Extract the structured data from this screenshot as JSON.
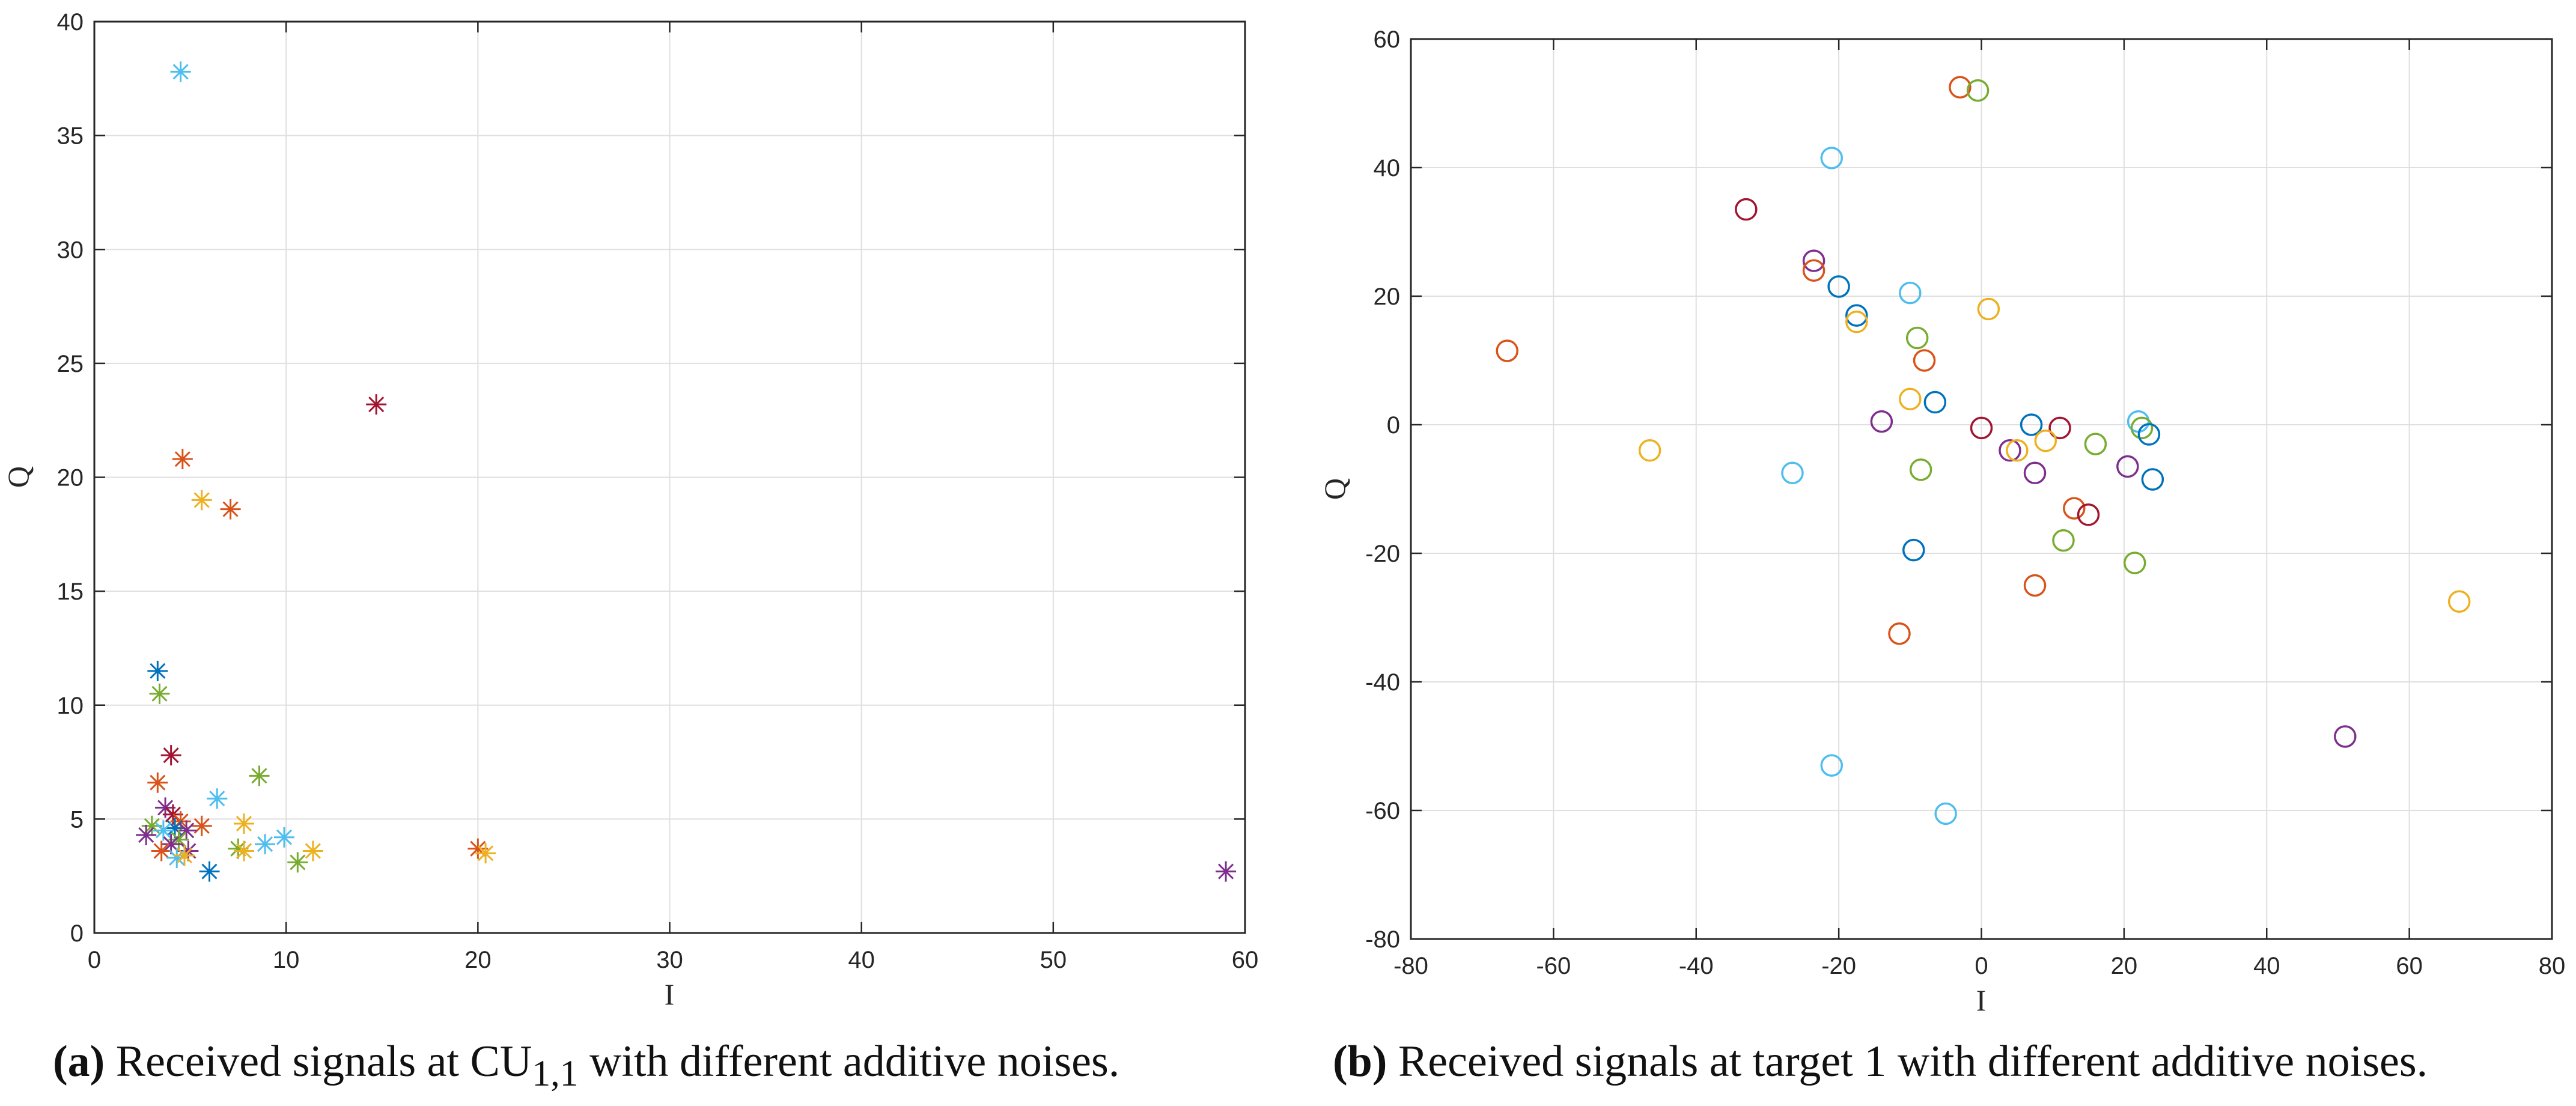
{
  "colors": [
    "#0072BD",
    "#D95319",
    "#EDB120",
    "#7E2F8E",
    "#77AC30",
    "#4DBEEE",
    "#A2142F"
  ],
  "chart_data": [
    {
      "type": "scatter",
      "marker": "asterisk",
      "title": "",
      "xlabel": "I",
      "ylabel": "Q",
      "xlim": [
        0,
        60
      ],
      "ylim": [
        0,
        40
      ],
      "xticks": [
        0,
        10,
        20,
        30,
        40,
        50,
        60
      ],
      "yticks": [
        0,
        5,
        10,
        15,
        20,
        25,
        30,
        35,
        40
      ],
      "grid": true,
      "points": [
        {
          "x": 4.5,
          "y": 37.8,
          "c": 5
        },
        {
          "x": 14.7,
          "y": 23.2,
          "c": 6
        },
        {
          "x": 4.6,
          "y": 20.8,
          "c": 1
        },
        {
          "x": 5.6,
          "y": 19.0,
          "c": 2
        },
        {
          "x": 7.1,
          "y": 18.6,
          "c": 1
        },
        {
          "x": 3.3,
          "y": 11.5,
          "c": 0
        },
        {
          "x": 3.4,
          "y": 10.5,
          "c": 4
        },
        {
          "x": 4.0,
          "y": 7.8,
          "c": 6
        },
        {
          "x": 8.6,
          "y": 6.9,
          "c": 4
        },
        {
          "x": 3.3,
          "y": 6.6,
          "c": 1
        },
        {
          "x": 6.4,
          "y": 5.9,
          "c": 5
        },
        {
          "x": 3.7,
          "y": 5.5,
          "c": 3
        },
        {
          "x": 4.1,
          "y": 5.2,
          "c": 6
        },
        {
          "x": 4.5,
          "y": 4.9,
          "c": 1
        },
        {
          "x": 3.0,
          "y": 4.7,
          "c": 4
        },
        {
          "x": 5.6,
          "y": 4.7,
          "c": 1
        },
        {
          "x": 7.8,
          "y": 4.8,
          "c": 2
        },
        {
          "x": 4.2,
          "y": 4.6,
          "c": 0
        },
        {
          "x": 4.8,
          "y": 4.5,
          "c": 3
        },
        {
          "x": 3.6,
          "y": 4.5,
          "c": 5
        },
        {
          "x": 2.7,
          "y": 4.3,
          "c": 3
        },
        {
          "x": 9.9,
          "y": 4.2,
          "c": 5
        },
        {
          "x": 4.4,
          "y": 4.1,
          "c": 4
        },
        {
          "x": 4.0,
          "y": 3.9,
          "c": 3
        },
        {
          "x": 8.9,
          "y": 3.9,
          "c": 5
        },
        {
          "x": 3.5,
          "y": 3.6,
          "c": 1
        },
        {
          "x": 4.9,
          "y": 3.6,
          "c": 3
        },
        {
          "x": 7.5,
          "y": 3.7,
          "c": 4
        },
        {
          "x": 7.8,
          "y": 3.6,
          "c": 2
        },
        {
          "x": 11.4,
          "y": 3.6,
          "c": 2
        },
        {
          "x": 20.0,
          "y": 3.7,
          "c": 1
        },
        {
          "x": 20.4,
          "y": 3.5,
          "c": 2
        },
        {
          "x": 4.3,
          "y": 3.3,
          "c": 5
        },
        {
          "x": 4.7,
          "y": 3.4,
          "c": 2
        },
        {
          "x": 10.6,
          "y": 3.1,
          "c": 4
        },
        {
          "x": 6.0,
          "y": 2.7,
          "c": 0
        },
        {
          "x": 59.0,
          "y": 2.7,
          "c": 3
        }
      ]
    },
    {
      "type": "scatter",
      "marker": "circle",
      "title": "",
      "xlabel": "I",
      "ylabel": "Q",
      "xlim": [
        -80,
        80
      ],
      "ylim": [
        -80,
        60
      ],
      "xticks": [
        -80,
        -60,
        -40,
        -20,
        0,
        20,
        40,
        60,
        80
      ],
      "yticks": [
        -80,
        -60,
        -40,
        -20,
        0,
        20,
        40,
        60
      ],
      "grid": true,
      "points": [
        {
          "x": -3,
          "y": 52.5,
          "c": 1
        },
        {
          "x": -0.5,
          "y": 52,
          "c": 4
        },
        {
          "x": -21,
          "y": 41.5,
          "c": 5
        },
        {
          "x": -33,
          "y": 33.5,
          "c": 6
        },
        {
          "x": -23.5,
          "y": 25.5,
          "c": 3
        },
        {
          "x": -23.5,
          "y": 24,
          "c": 1
        },
        {
          "x": -20,
          "y": 21.5,
          "c": 0
        },
        {
          "x": -10,
          "y": 20.5,
          "c": 5
        },
        {
          "x": 1,
          "y": 18,
          "c": 2
        },
        {
          "x": -17.5,
          "y": 17,
          "c": 0
        },
        {
          "x": -17.5,
          "y": 16,
          "c": 2
        },
        {
          "x": -9,
          "y": 13.5,
          "c": 4
        },
        {
          "x": -66.5,
          "y": 11.5,
          "c": 1
        },
        {
          "x": -8,
          "y": 10,
          "c": 1
        },
        {
          "x": -10,
          "y": 4,
          "c": 2
        },
        {
          "x": -6.5,
          "y": 3.5,
          "c": 0
        },
        {
          "x": -14,
          "y": 0.5,
          "c": 3
        },
        {
          "x": 0,
          "y": -0.5,
          "c": 6
        },
        {
          "x": 7,
          "y": 0,
          "c": 0
        },
        {
          "x": 11,
          "y": -0.5,
          "c": 6
        },
        {
          "x": 22,
          "y": 0.5,
          "c": 5
        },
        {
          "x": 22.5,
          "y": -0.5,
          "c": 4
        },
        {
          "x": 23.5,
          "y": -1.5,
          "c": 0
        },
        {
          "x": 9,
          "y": -2.5,
          "c": 2
        },
        {
          "x": 16,
          "y": -3,
          "c": 4
        },
        {
          "x": 4,
          "y": -4,
          "c": 3
        },
        {
          "x": 5,
          "y": -4,
          "c": 2
        },
        {
          "x": -46.5,
          "y": -4,
          "c": 2
        },
        {
          "x": -8.5,
          "y": -7,
          "c": 4
        },
        {
          "x": 7.5,
          "y": -7.5,
          "c": 3
        },
        {
          "x": -26.5,
          "y": -7.5,
          "c": 5
        },
        {
          "x": 20.5,
          "y": -6.5,
          "c": 3
        },
        {
          "x": 24,
          "y": -8.5,
          "c": 0
        },
        {
          "x": 13,
          "y": -13,
          "c": 1
        },
        {
          "x": 15,
          "y": -14,
          "c": 6
        },
        {
          "x": 11.5,
          "y": -18,
          "c": 4
        },
        {
          "x": -9.5,
          "y": -19.5,
          "c": 0
        },
        {
          "x": 21.5,
          "y": -21.5,
          "c": 4
        },
        {
          "x": 7.5,
          "y": -25,
          "c": 1
        },
        {
          "x": 67,
          "y": -27.5,
          "c": 2
        },
        {
          "x": -11.5,
          "y": -32.5,
          "c": 1
        },
        {
          "x": 51,
          "y": -48.5,
          "c": 3
        },
        {
          "x": -21,
          "y": -53,
          "c": 5
        },
        {
          "x": -5,
          "y": -60.5,
          "c": 5
        }
      ]
    }
  ],
  "captions": [
    {
      "label": "(a)",
      "pre": "Received signals at CU",
      "sub": "1,1",
      "post": " with different additive noises."
    },
    {
      "label": "(b)",
      "text": "Received signals at target 1 with different additive noises."
    }
  ]
}
